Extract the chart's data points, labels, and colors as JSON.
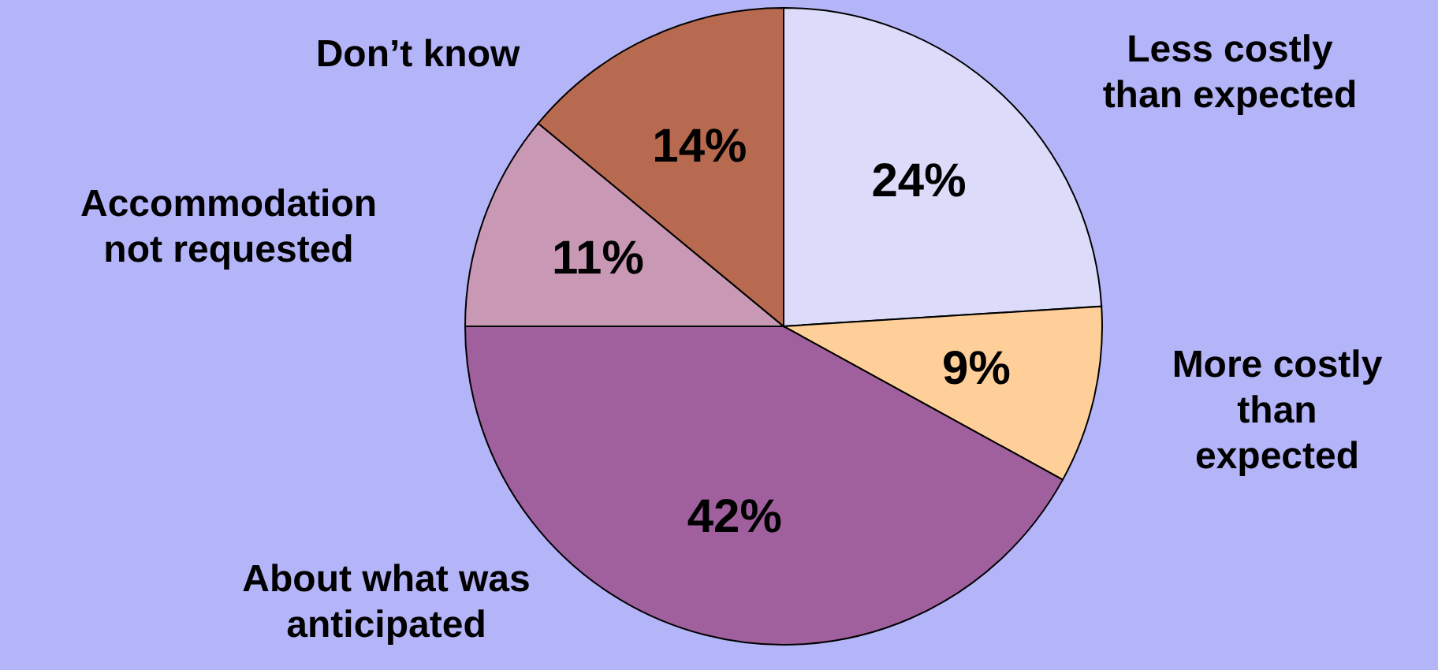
{
  "chart_data": {
    "type": "pie",
    "categories": [
      "Less costly than expected",
      "More costly than expected",
      "About what was anticipated",
      "Accommodation not requested",
      "Don’t know"
    ],
    "values": [
      24,
      9,
      42,
      11,
      14
    ],
    "value_labels": [
      "24%",
      "9%",
      "42%",
      "11%",
      "14%"
    ],
    "colors": [
      "#dcdcfa",
      "#ffcf9a",
      "#a0609e",
      "#c898b4",
      "#b86a50"
    ]
  }
}
